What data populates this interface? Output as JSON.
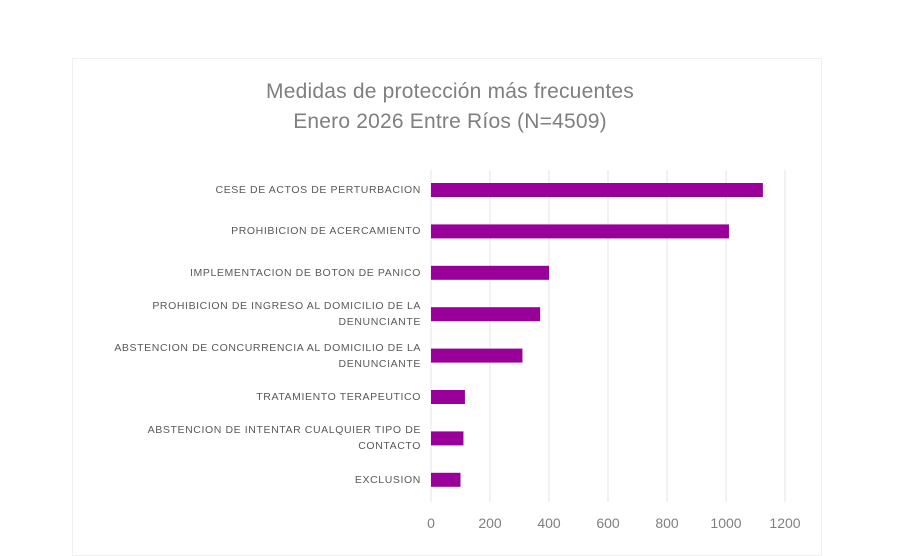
{
  "chart_data": {
    "type": "bar",
    "orientation": "horizontal",
    "title_lines": [
      "Medidas de protección más frecuentes",
      "Enero 2026 Entre Ríos (N=4509)"
    ],
    "categories": [
      "CESE DE ACTOS DE PERTURBACION",
      "PROHIBICION DE ACERCAMIENTO",
      "IMPLEMENTACION DE BOTON DE PANICO",
      "PROHIBICION DE INGRESO AL DOMICILIO DE LA DENUNCIANTE",
      "ABSTENCION DE CONCURRENCIA AL DOMICILIO DE LA DENUNCIANTE",
      "TRATAMIENTO TERAPEUTICO",
      "ABSTENCION DE INTENTAR CUALQUIER TIPO DE CONTACTO",
      "EXCLUSION"
    ],
    "category_lines": [
      [
        "CESE DE ACTOS DE PERTURBACION"
      ],
      [
        "PROHIBICION DE ACERCAMIENTO"
      ],
      [
        "IMPLEMENTACION DE BOTON DE PANICO"
      ],
      [
        "PROHIBICION DE INGRESO AL DOMICILIO DE LA",
        "DENUNCIANTE"
      ],
      [
        "ABSTENCION DE CONCURRENCIA AL DOMICILIO DE LA",
        "DENUNCIANTE"
      ],
      [
        "TRATAMIENTO TERAPEUTICO"
      ],
      [
        "ABSTENCION DE INTENTAR CUALQUIER TIPO DE",
        "CONTACTO"
      ],
      [
        "EXCLUSION"
      ]
    ],
    "values": [
      1125,
      1010,
      400,
      370,
      310,
      115,
      110,
      100
    ],
    "xlim": [
      0,
      1200
    ],
    "xticks": [
      0,
      200,
      400,
      600,
      800,
      1000,
      1200
    ],
    "xlabel": "",
    "ylabel": "",
    "grid": "vertical",
    "legend": "none",
    "bar_color": "#990099",
    "grid_color": "#e6e6e6"
  }
}
